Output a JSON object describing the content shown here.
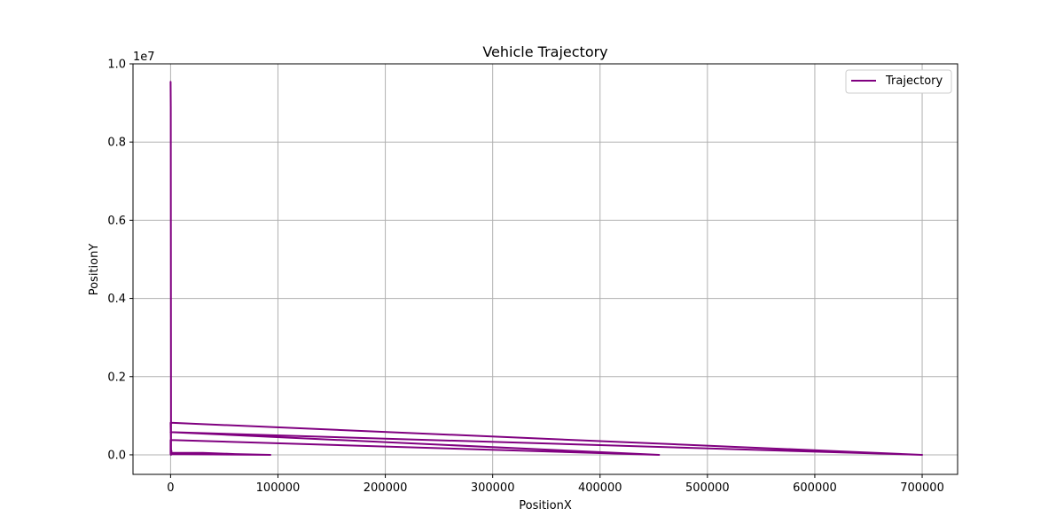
{
  "chart_data": {
    "type": "line",
    "title": "Vehicle Trajectory",
    "xlabel": "PositionX",
    "ylabel": "PositionY",
    "y_offset_label": "1e7",
    "y_scale_factor": 10000000,
    "xlim": [
      -35000,
      733000
    ],
    "ylim": [
      -500000,
      10000000
    ],
    "x_ticks": [
      0,
      100000,
      200000,
      300000,
      400000,
      500000,
      600000,
      700000
    ],
    "x_tick_labels": [
      "0",
      "100000",
      "200000",
      "300000",
      "400000",
      "500000",
      "600000",
      "700000"
    ],
    "y_ticks": [
      0,
      2000000,
      4000000,
      6000000,
      8000000,
      10000000
    ],
    "y_tick_labels": [
      "0.0",
      "0.2",
      "0.4",
      "0.6",
      "0.8",
      "1.0"
    ],
    "grid": true,
    "legend_position": "top-right",
    "series": [
      {
        "name": "Trajectory",
        "color": "#800080",
        "x": [
          0,
          200,
          400,
          800,
          0,
          30000,
          60000,
          93000,
          0,
          0,
          0,
          455000,
          0,
          700000,
          0,
          700000,
          0,
          700000,
          0,
          500,
          1000,
          300,
          0
        ],
        "y": [
          9550000,
          8900000,
          0,
          100000,
          50000,
          50000,
          20000,
          0,
          20000,
          380000,
          380000,
          0,
          580000,
          0,
          580000,
          0,
          820000,
          0,
          820000,
          50000,
          20000,
          60000,
          0
        ]
      }
    ]
  }
}
